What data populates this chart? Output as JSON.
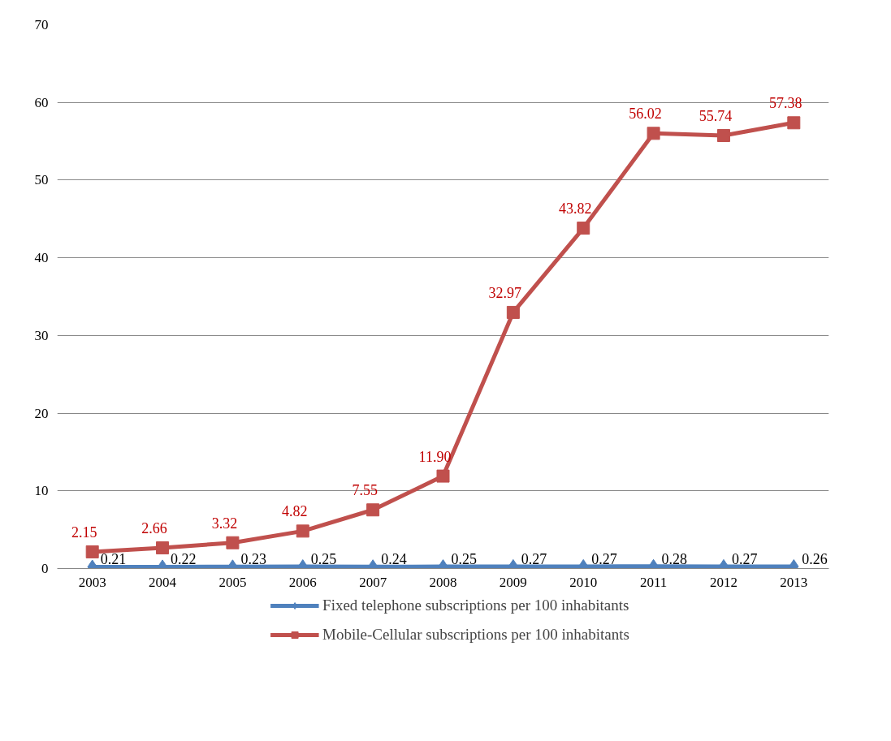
{
  "chart_data": {
    "type": "line",
    "categories": [
      "2003",
      "2004",
      "2005",
      "2006",
      "2007",
      "2008",
      "2009",
      "2010",
      "2011",
      "2012",
      "2013"
    ],
    "series": [
      {
        "name": "Fixed telephone subscriptions per 100 inhabitants",
        "color": "#4f81bd",
        "marker": "diamond",
        "values": [
          0.21,
          0.22,
          0.23,
          0.25,
          0.24,
          0.25,
          0.27,
          0.27,
          0.28,
          0.27,
          0.26
        ],
        "value_labels": [
          "0.21",
          "0.22",
          "0.23",
          "0.25",
          "0.24",
          "0.25",
          "0.27",
          "0.27",
          "0.28",
          "0.27",
          "0.26"
        ]
      },
      {
        "name": "Mobile-Cellular subscriptions per 100 inhabitants",
        "color": "#c0504d",
        "marker": "square",
        "values": [
          2.15,
          2.66,
          3.32,
          4.82,
          7.55,
          11.9,
          32.97,
          43.82,
          56.02,
          55.74,
          57.38
        ],
        "value_labels": [
          "2.15",
          "2.66",
          "3.32",
          "4.82",
          "7.55",
          "11.90",
          "32.97",
          "43.82",
          "56.02",
          "55.74",
          "57.38"
        ]
      }
    ],
    "ylim": [
      0,
      70
    ],
    "yticks": [
      0,
      10,
      20,
      30,
      40,
      50,
      60,
      70
    ],
    "grid": "y",
    "legend": "bottom",
    "line_style": "solid"
  }
}
